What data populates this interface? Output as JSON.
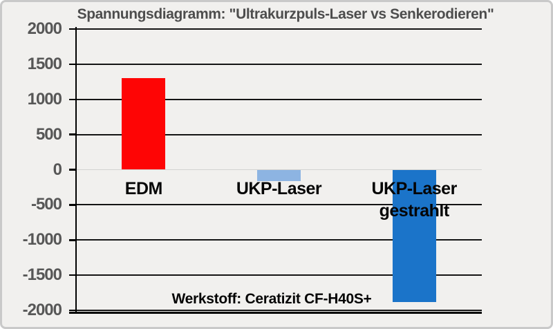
{
  "chart_data": {
    "type": "bar",
    "title": "Spannungsdiagramm: \"Ultrakurzpuls-Laser vs Senkerodieren\"",
    "categories": [
      "EDM",
      "UKP-Laser",
      "UKP-Laser\ngestrahlt"
    ],
    "values": [
      1300,
      -160,
      -1880
    ],
    "bar_colors": [
      "#fe0505",
      "#8db4e2",
      "#1b74c9"
    ],
    "ylim": [
      -2000,
      2000
    ],
    "yticks": [
      2000,
      1500,
      1000,
      500,
      0,
      -500,
      -1000,
      -1500,
      -2000
    ],
    "grid": "on",
    "legend": "none",
    "xlabel": "",
    "ylabel": "",
    "annotation": "Werkstoff: Ceratizit CF-H40S+"
  },
  "colors": {
    "background": "#f1f0ee",
    "frame_border": "#c9c9c9",
    "gridline": "#141414",
    "zero_line": "#d2d2d0",
    "axis_line": "#000000",
    "tick_label": "#575757",
    "title_text": "#4d4d4d",
    "category_text": "#050505"
  }
}
